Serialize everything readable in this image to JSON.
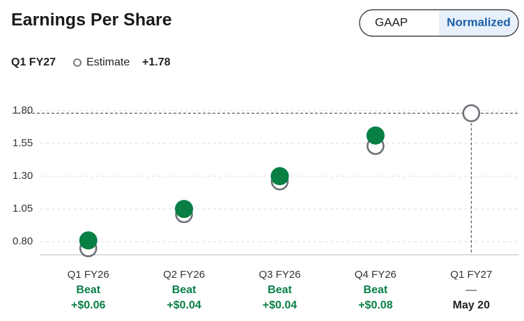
{
  "header": {
    "title": "Earnings Per Share",
    "toggle": [
      "GAAP",
      "Normalized"
    ],
    "active": 1
  },
  "chart_data": {
    "type": "scatter",
    "subtitle": "Q1 FY27",
    "reference": {
      "value": 1.78,
      "label": "+1.78"
    },
    "categories": [
      "Q1 FY26",
      "Q2 FY26",
      "Q3 FY26",
      "Q4 FY26",
      "Q1 FY27"
    ],
    "series": [
      {
        "name": "Estimate",
        "color": "#6b7078",
        "filled": false,
        "values": [
          0.75,
          1.01,
          1.26,
          1.53,
          1.78
        ]
      },
      {
        "color": "#087f45",
        "filled": true,
        "values": [
          0.81,
          1.05,
          1.3,
          1.61,
          null
        ]
      }
    ],
    "results": [
      "Beat",
      "Beat",
      "Beat",
      "Beat",
      "—"
    ],
    "surprise": [
      0.06,
      0.04,
      0.04,
      0.08,
      null
    ],
    "surprise_labels": [
      "+$0.06",
      "+$0.04",
      "+$0.04",
      "+$0.08",
      null
    ],
    "dates": [
      null,
      null,
      null,
      null,
      "May 20"
    ],
    "ylim": [
      0.7,
      1.9
    ],
    "yticks": [
      {
        "value": 0.8,
        "label": "0.80"
      },
      {
        "value": 1.05,
        "label": "1.05"
      },
      {
        "value": 1.3,
        "label": "1.30"
      },
      {
        "value": 1.55,
        "label": "1.55"
      },
      {
        "value": 1.8,
        "label": "1.80"
      }
    ],
    "grid": true
  }
}
